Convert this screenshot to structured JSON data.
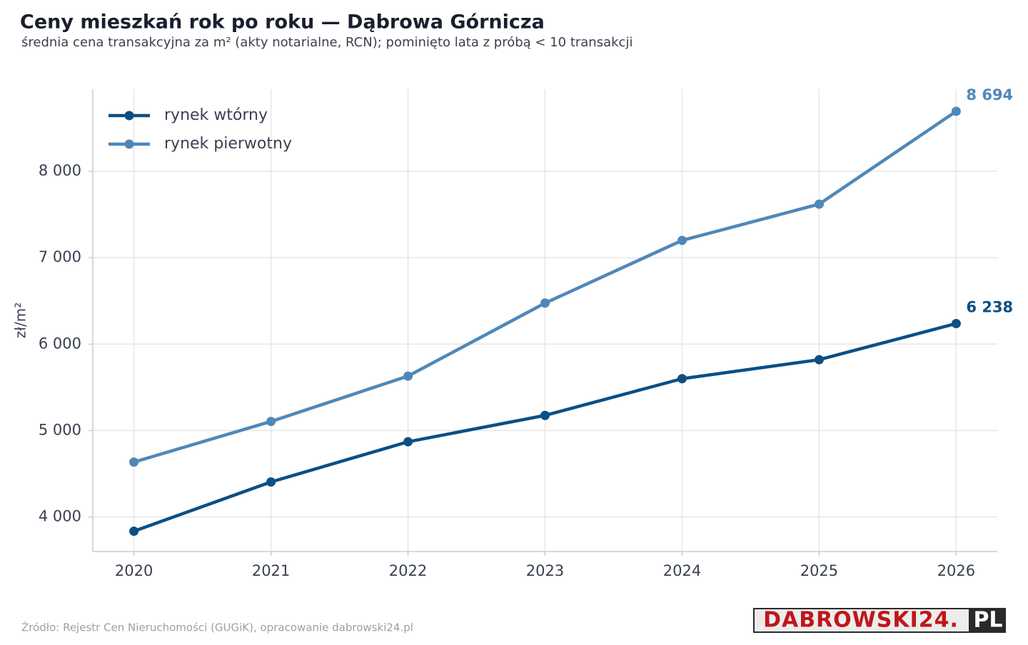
{
  "chart_data": {
    "type": "line",
    "title": "Ceny mieszkań rok po roku — Dąbrowa Górnicza",
    "subtitle": "średnia cena transakcyjna za m² (akty notarialne, RCN); pominięto lata z próbą < 10 transakcji",
    "y_label": "zł/m²",
    "source": "Źródło: Rejestr Cen Nieruchomości (GUGiK), opracowanie dabrowski24.pl",
    "logo": {
      "main": "DABROWSKI24.",
      "suffix": "PL"
    },
    "x": [
      2020,
      2021,
      2022,
      2023,
      2024,
      2025,
      2026
    ],
    "series": [
      {
        "name": "rynek wtórny",
        "color": "#0b4f85",
        "values": [
          3835,
          4405,
          4870,
          5175,
          5600,
          5820,
          6238
        ],
        "value_labels": [
          null,
          null,
          null,
          null,
          null,
          null,
          "6 238"
        ]
      },
      {
        "name": "rynek pierwotny",
        "color": "#4f88b8",
        "values": [
          4635,
          5105,
          5630,
          6475,
          7200,
          7620,
          8694
        ],
        "value_labels": [
          null,
          null,
          null,
          null,
          null,
          null,
          "8 694"
        ]
      }
    ],
    "xlim": [
      2019.7,
      2026.3
    ],
    "xticks": [
      2020,
      2021,
      2022,
      2023,
      2024,
      2025,
      2026
    ],
    "ylim": [
      3600,
      8950
    ],
    "yticks": [
      {
        "value": 4000,
        "label": "4 000"
      },
      {
        "value": 5000,
        "label": "5 000"
      },
      {
        "value": 6000,
        "label": "6 000"
      },
      {
        "value": 7000,
        "label": "7 000"
      },
      {
        "value": 8000,
        "label": "8 000"
      }
    ],
    "grid": true,
    "legend": "upper-left"
  }
}
